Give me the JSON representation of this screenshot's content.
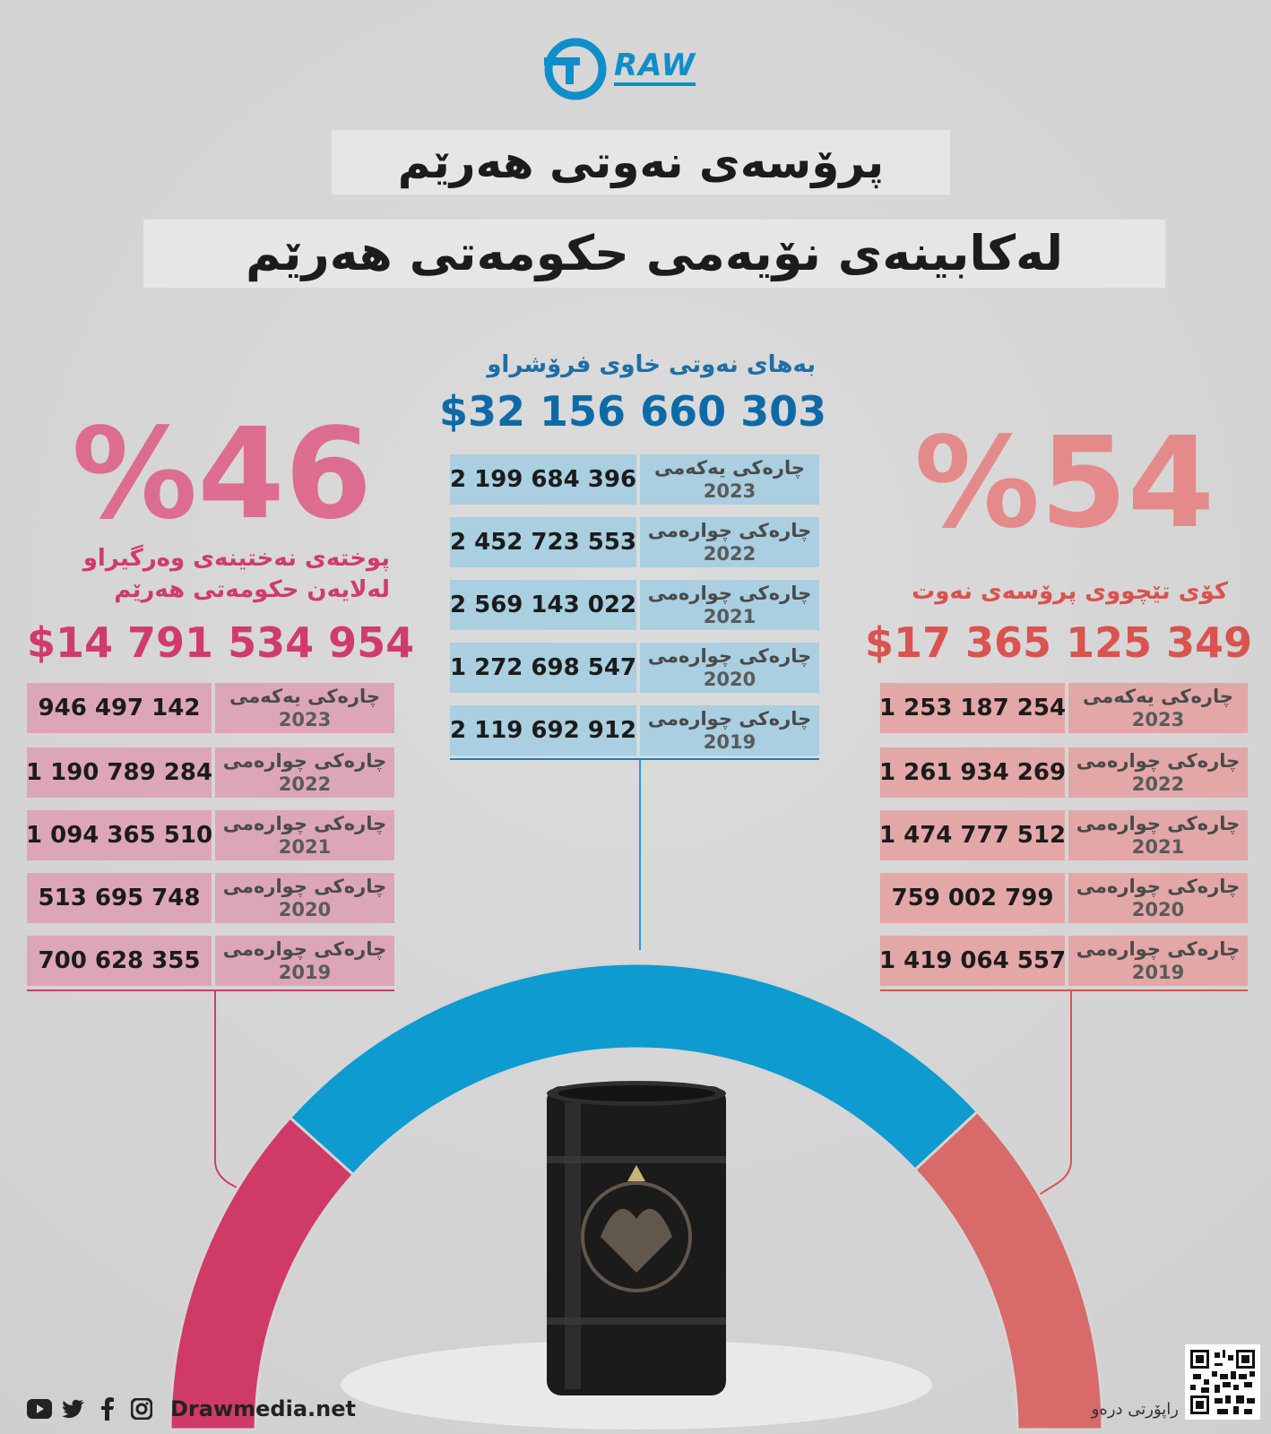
{
  "brand": {
    "logo_text": "RAW",
    "accent": "#0e8fc9"
  },
  "title": {
    "line1": "پرۆسەی نەوتی هەرێم",
    "line2": "لەکابینەی نۆیەمی حکومەتی هەرێم"
  },
  "center": {
    "label": "بەهای نەوتی خاوی فرۆشراو",
    "total": "$32 156 660 303",
    "rows": [
      {
        "value": "2 199 684 396",
        "quarter": "چارەکی یەکەمی",
        "year": "2023"
      },
      {
        "value": "2 452 723 553",
        "quarter": "چارەکی چوارەمی",
        "year": "2022"
      },
      {
        "value": "2 569 143 022",
        "quarter": "چارەکی چوارەمی",
        "year": "2021"
      },
      {
        "value": "1 272 698 547",
        "quarter": "چارەکی چوارەمی",
        "year": "2020"
      },
      {
        "value": "2 119 692 912",
        "quarter": "چارەکی چوارەمی",
        "year": "2019"
      }
    ]
  },
  "left": {
    "percent": "%46",
    "label_line1": "پوختەی نەختینەی وەرگیراو",
    "label_line2": "لەلایەن حکومەتی هەرێم",
    "total": "$14 791 534 954",
    "rows": [
      {
        "value": "946 497 142",
        "quarter": "چارەکی یەکەمی",
        "year": "2023"
      },
      {
        "value": "1 190 789 284",
        "quarter": "چارەکی چوارەمی",
        "year": "2022"
      },
      {
        "value": "1 094 365 510",
        "quarter": "چارەکی چوارەمی",
        "year": "2021"
      },
      {
        "value": "513 695 748",
        "quarter": "چارەکی چوارەمی",
        "year": "2020"
      },
      {
        "value": "700 628 355",
        "quarter": "چارەکی چوارەمی",
        "year": "2019"
      }
    ]
  },
  "right": {
    "percent": "%54",
    "label": "کۆی تێچووی پرۆسەی نەوت",
    "total": "$17 365 125 349",
    "rows": [
      {
        "value": "1 253 187 254",
        "quarter": "چارەکی یەکەمی",
        "year": "2023"
      },
      {
        "value": "1 261 934 269",
        "quarter": "چارەکی چوارەمی",
        "year": "2022"
      },
      {
        "value": "1 474 777 512",
        "quarter": "چارەکی چوارەمی",
        "year": "2021"
      },
      {
        "value": "759 002 799",
        "quarter": "چارەکی چوارەمی",
        "year": "2020"
      },
      {
        "value": "1 419 064 557",
        "quarter": "چارەکی چوارەمی",
        "year": "2019"
      }
    ]
  },
  "arc": {
    "shares": [
      46,
      54
    ],
    "colors": {
      "left": "#d03a67",
      "center": "#0d9bd0",
      "right": "#d96a6a"
    }
  },
  "footer": {
    "site": "Drawmedia.net",
    "credit": "راپۆرتی درەو",
    "social_icons": [
      "youtube-icon",
      "twitter-icon",
      "facebook-icon",
      "instagram-icon"
    ]
  }
}
